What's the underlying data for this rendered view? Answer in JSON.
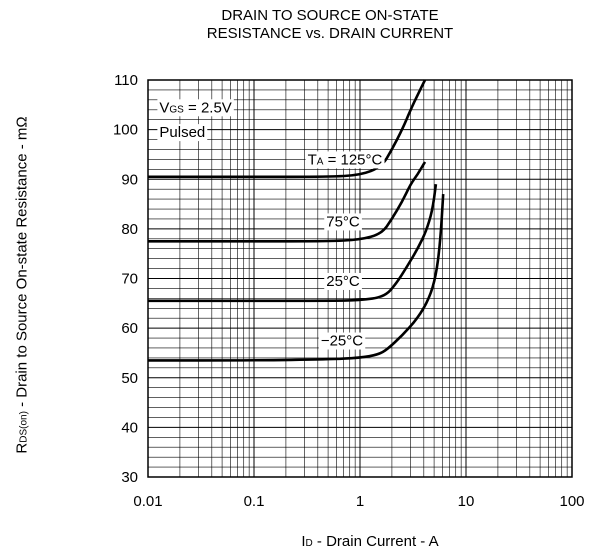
{
  "title_line1": "DRAIN TO SOURCE ON-STATE",
  "title_line2": "RESISTANCE vs. DRAIN CURRENT",
  "ylabel": {
    "main": "R",
    "sub": "DS(on)",
    "rest": " - Drain to Source On-state Resistance - mΩ"
  },
  "xlabel": {
    "main": "I",
    "sub": "D",
    "rest": " - Drain Current - A"
  },
  "chart_data": {
    "type": "line",
    "xscale": "log",
    "xlim": [
      0.01,
      100
    ],
    "ylim": [
      30,
      110
    ],
    "xticks": [
      0.01,
      0.1,
      1,
      10,
      100
    ],
    "xtick_labels": [
      "0.01",
      "0.1",
      "1",
      "10",
      "100"
    ],
    "yticks": [
      30,
      40,
      50,
      60,
      70,
      80,
      90,
      100,
      110
    ],
    "ytick_labels": [
      "30",
      "40",
      "50",
      "60",
      "70",
      "80",
      "90",
      "100",
      "110"
    ],
    "grid": true,
    "annotations": [
      {
        "text_main": "V",
        "text_sub": "GS",
        "text_rest": " = 2.5V",
        "x": 0.012,
        "y": 104.5
      },
      {
        "text_main": "Pulsed",
        "text_sub": "",
        "text_rest": "",
        "x": 0.012,
        "y": 99.5
      },
      {
        "text_main": "T",
        "text_sub": "A",
        "text_rest": " = 125°C",
        "x": 0.3,
        "y": 94
      },
      {
        "text_main": "75°C",
        "text_sub": "",
        "text_rest": "",
        "x": 0.45,
        "y": 81.5
      },
      {
        "text_main": "25°C",
        "text_sub": "",
        "text_rest": "",
        "x": 0.45,
        "y": 69.5
      },
      {
        "text_main": "−25°C",
        "text_sub": "",
        "text_rest": "",
        "x": 0.4,
        "y": 57.5
      }
    ],
    "series": [
      {
        "x": [
          0.01,
          0.1,
          0.5,
          1.0,
          1.6,
          2.0,
          2.5,
          3.0,
          3.5,
          4.1
        ],
        "y": [
          90.5,
          90.5,
          90.5,
          90.8,
          92.5,
          96,
          100,
          104,
          107,
          110
        ]
      },
      {
        "x": [
          0.01,
          0.1,
          0.5,
          1.0,
          1.6,
          2.0,
          2.5,
          3.0,
          3.5,
          4.1
        ],
        "y": [
          77.5,
          77.5,
          77.5,
          77.8,
          79,
          82,
          85.5,
          89,
          91,
          93.5
        ]
      },
      {
        "x": [
          0.01,
          0.1,
          0.5,
          1.0,
          1.7,
          2.2,
          2.8,
          3.5,
          4.2,
          4.8,
          5.2
        ],
        "y": [
          65.5,
          65.5,
          65.5,
          65.6,
          66.3,
          69,
          72.5,
          76,
          79.5,
          83.5,
          89
        ]
      },
      {
        "x": [
          0.01,
          0.1,
          0.5,
          1.0,
          1.5,
          1.8,
          2.5,
          3.5,
          4.5,
          5.2,
          5.7,
          6.1
        ],
        "y": [
          53.5,
          53.5,
          53.7,
          54,
          54.7,
          55.7,
          58.5,
          62,
          66,
          70.5,
          77,
          87
        ]
      }
    ]
  }
}
